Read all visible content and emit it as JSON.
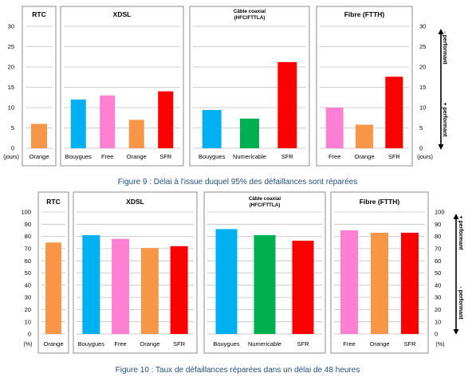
{
  "colors": {
    "bouygues": "#00b0f0",
    "free": "#ff7fd5",
    "orange": "#f79646",
    "sfr": "#ff0000",
    "numericable": "#00b050",
    "caption": "#1f4e79"
  },
  "chart_data": [
    {
      "type": "bar",
      "caption": "Figure 9 : Délai à l'issue duquel 95% des défaillances sont réparées",
      "ylim": [
        0,
        30
      ],
      "yticks": [
        0,
        5,
        10,
        15,
        20,
        25,
        30
      ],
      "unit": "(jours)",
      "performance_top": "- performant",
      "performance_bottom": "+ performant",
      "panels": [
        {
          "title": "RTC",
          "categories": [
            "Orange"
          ],
          "values": [
            6.0
          ],
          "color_keys": [
            "orange"
          ]
        },
        {
          "title": "XDSL",
          "categories": [
            "Bouygues",
            "Free",
            "Orange",
            "SFR"
          ],
          "values": [
            12.0,
            13.0,
            7.0,
            14.0
          ],
          "color_keys": [
            "bouygues",
            "free",
            "orange",
            "sfr"
          ]
        },
        {
          "title": "Câble coaxial",
          "subtitle": "(HFC/FTTLA)",
          "categories": [
            "Bouygues",
            "Numericable",
            "SFR"
          ],
          "values": [
            9.4,
            7.3,
            21.2
          ],
          "color_keys": [
            "bouygues",
            "numericable",
            "sfr"
          ]
        },
        {
          "title": "Fibre (FTTH)",
          "categories": [
            "Free",
            "Orange",
            "SFR"
          ],
          "values": [
            10.0,
            5.8,
            17.6
          ],
          "color_keys": [
            "free",
            "orange",
            "sfr"
          ]
        }
      ]
    },
    {
      "type": "bar",
      "caption": "Figure 10 : Taux de défaillances réparées dans un délai de 48 heures",
      "ylim": [
        0,
        100
      ],
      "yticks": [
        0,
        10,
        20,
        30,
        40,
        50,
        60,
        70,
        80,
        90,
        100
      ],
      "unit": "(%)",
      "performance_top": "+ performant",
      "performance_bottom": "- performant",
      "panels": [
        {
          "title": "RTC",
          "categories": [
            "Orange"
          ],
          "values": [
            75.0
          ],
          "color_keys": [
            "orange"
          ]
        },
        {
          "title": "XDSL",
          "categories": [
            "Bouygues",
            "Free",
            "Orange",
            "SFR"
          ],
          "values": [
            81.0,
            78.0,
            70.5,
            72.0
          ],
          "color_keys": [
            "bouygues",
            "free",
            "orange",
            "sfr"
          ]
        },
        {
          "title": "Câble coaxial",
          "subtitle": "(HFC/FTTLA)",
          "categories": [
            "Bouygues",
            "Numericable",
            "SFR"
          ],
          "values": [
            86.0,
            81.0,
            76.5
          ],
          "color_keys": [
            "bouygues",
            "numericable",
            "sfr"
          ]
        },
        {
          "title": "Fibre (FTTH)",
          "categories": [
            "Free",
            "Orange",
            "SFR"
          ],
          "values": [
            85.0,
            83.0,
            83.0
          ],
          "color_keys": [
            "free",
            "orange",
            "sfr"
          ]
        }
      ]
    }
  ]
}
